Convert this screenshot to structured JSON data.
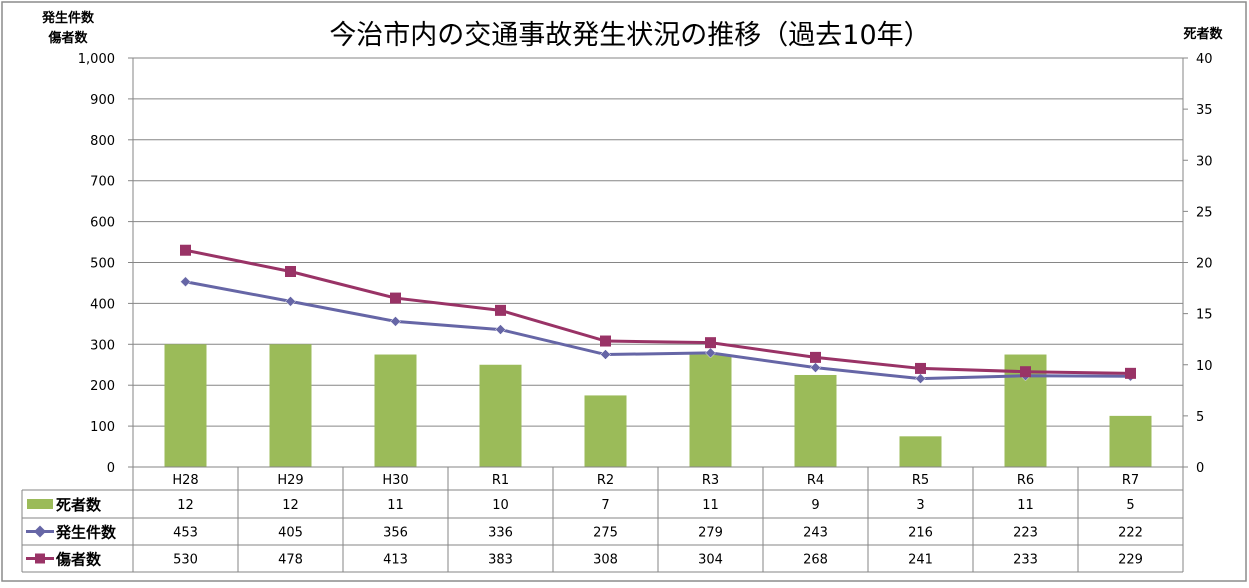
{
  "chart_data": {
    "type": "bar+line",
    "title": "今治市内の交通事故発生状況の推移（過去10年）",
    "ylabel_left": [
      "発生件数",
      "傷者数"
    ],
    "ylabel_right": "死者数",
    "ylim_left": [
      0,
      1000
    ],
    "ylim_right": [
      0,
      40
    ],
    "yticks_left": [
      "0",
      "100",
      "200",
      "300",
      "400",
      "500",
      "600",
      "700",
      "800",
      "900",
      "1,000"
    ],
    "yticks_right": [
      "0",
      "5",
      "10",
      "15",
      "20",
      "25",
      "30",
      "35",
      "40"
    ],
    "grid": true,
    "legend": "data-table",
    "categories": [
      "H28",
      "H29",
      "H30",
      "R1",
      "R2",
      "R3",
      "R4",
      "R5",
      "R6",
      "R7"
    ],
    "series": [
      {
        "name": "死者数",
        "kind": "bar",
        "axis": "right",
        "color": "#9BBB59",
        "values": [
          12,
          12,
          11,
          10,
          7,
          11,
          9,
          3,
          11,
          5
        ]
      },
      {
        "name": "発生件数",
        "kind": "line",
        "marker": "diamond",
        "axis": "left",
        "color": "#6666A6",
        "values": [
          453,
          405,
          356,
          336,
          275,
          279,
          243,
          216,
          223,
          222
        ]
      },
      {
        "name": "傷者数",
        "kind": "line",
        "marker": "square",
        "axis": "left",
        "color": "#993366",
        "values": [
          530,
          478,
          413,
          383,
          308,
          304,
          268,
          241,
          233,
          229
        ]
      }
    ]
  }
}
